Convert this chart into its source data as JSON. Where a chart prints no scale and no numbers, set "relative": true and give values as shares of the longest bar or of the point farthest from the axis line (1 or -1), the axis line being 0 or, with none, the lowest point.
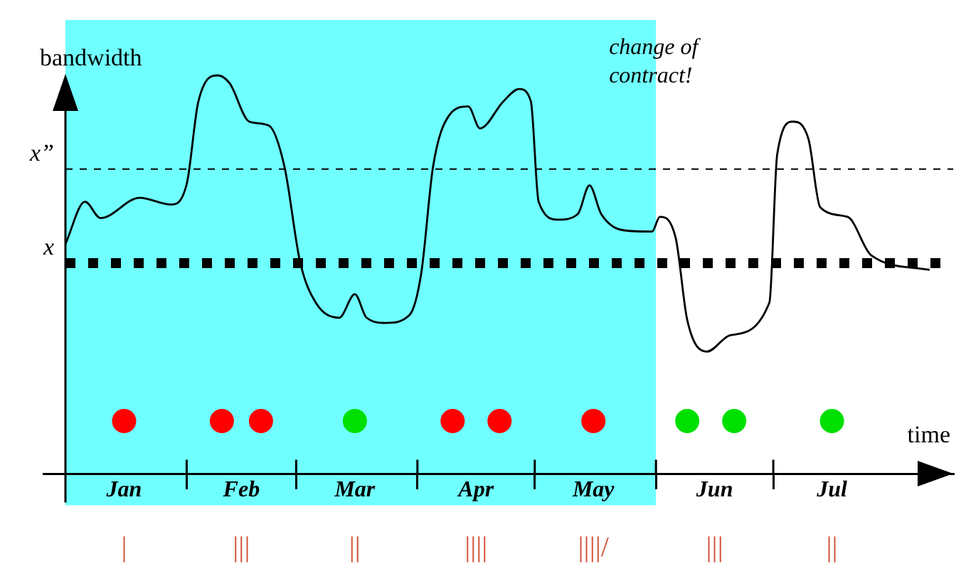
{
  "chart_data": {
    "type": "line",
    "relative": true,
    "ylabel": "bandwidth",
    "xlabel": "time",
    "xlim": [
      "--01-01",
      "--08-16"
    ],
    "xticks": [
      {
        "value": "--01-16",
        "label": "Jan"
      },
      {
        "value": "--02-01",
        "label": null
      },
      {
        "value": "--02-15",
        "label": "Feb"
      },
      {
        "value": "--03-01",
        "label": null
      },
      {
        "value": "--03-16",
        "label": "Mar"
      },
      {
        "value": "--04-01",
        "label": null
      },
      {
        "value": "--04-16",
        "label": "Apr"
      },
      {
        "value": "--05-01",
        "label": null
      },
      {
        "value": "--05-16",
        "label": "May"
      },
      {
        "value": "--06-01",
        "label": null
      },
      {
        "value": "--06-16",
        "label": "Jun"
      },
      {
        "value": "--07-01",
        "label": null
      },
      {
        "value": "--07-16",
        "label": "Jul"
      }
    ],
    "legend": false,
    "bands": [
      {
        "axis": "x",
        "from": "--01-01",
        "to": "--06-01",
        "color": "#70ffff"
      }
    ],
    "ref_lines": [
      {
        "axis": "y",
        "value": 0.529,
        "label": "x",
        "line_style": "dotted"
      },
      {
        "axis": "y",
        "value": 0.765,
        "label": "x”",
        "line_style": "dashed"
      }
    ],
    "annotations": [
      "change of contract!",
      "|",
      "|||",
      "||",
      "||||",
      "||||/",
      "|||",
      "||"
    ],
    "series": [
      {
        "color": "#000000",
        "marker": "none",
        "x": [
          "--01-01",
          "--01-06",
          "--01-10",
          "--01-20",
          "--01-28",
          "--02-01",
          "--02-04",
          "--02-09",
          "--02-12",
          "--02-17",
          "--02-22",
          "--02-26",
          "--03-02",
          "--03-06",
          "--03-12",
          "--03-16",
          "--03-19",
          "--03-24",
          "--03-30",
          "--04-02",
          "--04-05",
          "--04-09",
          "--04-14",
          "--04-17",
          "--04-23",
          "--04-27",
          "--04-30",
          "--05-02",
          "--05-07",
          "--05-12",
          "--05-15",
          "--05-18",
          "--05-24",
          "--05-31",
          "--06-02",
          "--06-06",
          "--06-09",
          "--06-14",
          "--06-20",
          "--06-30",
          "--07-02",
          "--07-06",
          "--07-10",
          "--07-13",
          "--07-20",
          "--07-26",
          "--08-10"
        ],
        "values": [
          0.577,
          0.683,
          0.642,
          0.693,
          0.676,
          0.727,
          0.935,
          1,
          0.98,
          0.884,
          0.874,
          0.771,
          0.532,
          0.43,
          0.392,
          0.451,
          0.392,
          0.379,
          0.399,
          0.505,
          0.771,
          0.898,
          0.922,
          0.867,
          0.935,
          0.966,
          0.935,
          0.683,
          0.638,
          0.652,
          0.724,
          0.652,
          0.611,
          0.608,
          0.645,
          0.594,
          0.386,
          0.307,
          0.348,
          0.43,
          0.802,
          0.884,
          0.84,
          0.669,
          0.645,
          0.549,
          0.512
        ]
      },
      {
        "type": "scatter",
        "color": "#ff0000",
        "marker": "circle",
        "x": [
          "--01-16",
          "--02-10",
          "--02-20",
          "--04-10",
          "--04-22",
          "--05-16"
        ],
        "values": [
          0.133,
          0.133,
          0.133,
          0.133,
          0.133,
          0.133
        ]
      },
      {
        "type": "scatter",
        "color": "#00e000",
        "marker": "circle",
        "x": [
          "--03-16",
          "--06-09",
          "--06-21",
          "--07-16"
        ],
        "values": [
          0.133,
          0.133,
          0.133,
          0.133
        ]
      }
    ]
  }
}
